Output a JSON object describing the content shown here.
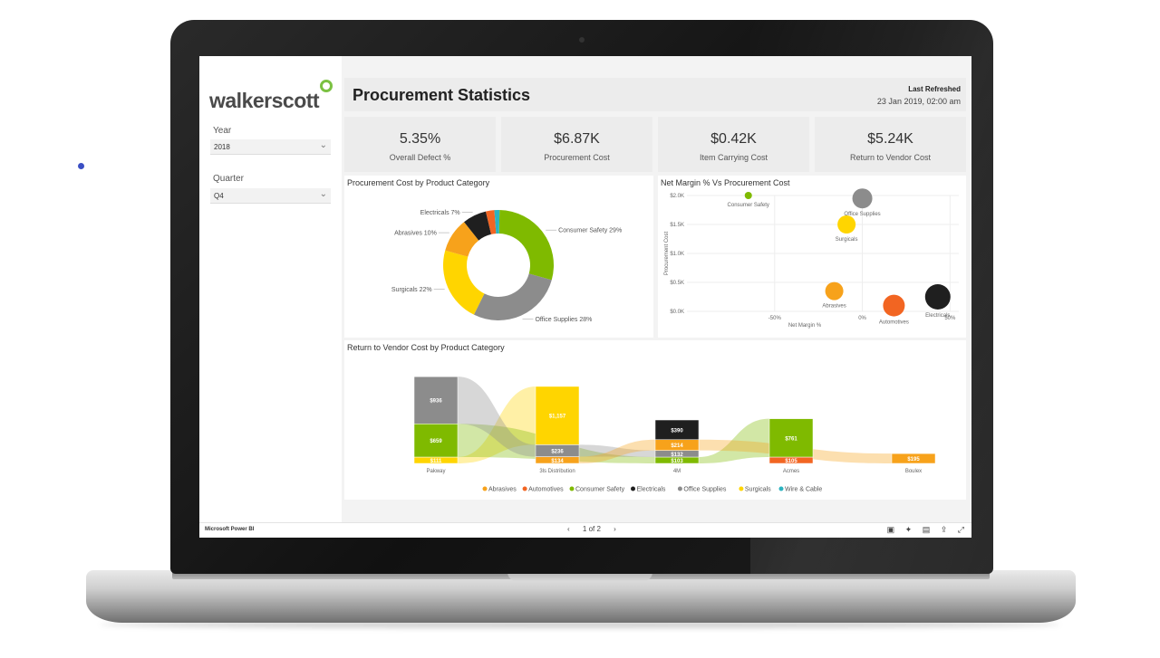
{
  "brand": {
    "logo_text": "walkerscott"
  },
  "filters": {
    "year_label": "Year",
    "year_value": "2018",
    "quarter_label": "Quarter",
    "quarter_value": "Q4"
  },
  "header": {
    "title": "Procurement Statistics",
    "refresh_label": "Last Refreshed",
    "refresh_date": "23 Jan 2019, 02:00 am"
  },
  "kpis": [
    {
      "value": "5.35%",
      "label": "Overall Defect %"
    },
    {
      "value": "$6.87K",
      "label": "Procurement Cost"
    },
    {
      "value": "$0.42K",
      "label": "Item Carrying Cost"
    },
    {
      "value": "$5.24K",
      "label": "Return to Vendor Cost"
    }
  ],
  "donut": {
    "title": "Procurement Cost by Product Category",
    "chart_data": {
      "type": "pie",
      "slices": [
        {
          "name": "Consumer Safety",
          "value": 29,
          "label": "Consumer Safety 29%",
          "color": "#7fba00"
        },
        {
          "name": "Office Supplies",
          "value": 28,
          "label": "Office Supplies 28%",
          "color": "#8c8c8c"
        },
        {
          "name": "Surgicals",
          "value": 22,
          "label": "Surgicals 22%",
          "color": "#ffd500"
        },
        {
          "name": "Abrasives",
          "value": 10,
          "label": "Abrasives 10%",
          "color": "#f7a21b"
        },
        {
          "name": "Electricals",
          "value": 7,
          "label": "Electricals 7%",
          "color": "#1f1f1f"
        },
        {
          "name": "Automotives",
          "value": 2.5,
          "label": "",
          "color": "#f26522"
        },
        {
          "name": "Wire & Cable",
          "value": 1.5,
          "label": "",
          "color": "#2bb3c0"
        }
      ]
    }
  },
  "scatter": {
    "title": "Net Margin % Vs Procurement Cost",
    "chart_data": {
      "type": "scatter",
      "xlabel": "Net Margin %",
      "ylabel": "Procurement Cost",
      "x_ticks": [
        "-50%",
        "0%",
        "50%"
      ],
      "y_ticks": [
        "$0.0K",
        "$0.5K",
        "$1.0K",
        "$1.5K",
        "$2.0K"
      ],
      "points": [
        {
          "name": "Consumer Safety",
          "x": -65,
          "y": 2.0,
          "color": "#7fba00",
          "size": 4
        },
        {
          "name": "Office Supplies",
          "x": 0,
          "y": 1.95,
          "color": "#8c8c8c",
          "size": 11
        },
        {
          "name": "Surgicals",
          "x": -9,
          "y": 1.5,
          "color": "#ffd500",
          "size": 10
        },
        {
          "name": "Abrasives",
          "x": -16,
          "y": 0.35,
          "color": "#f7a21b",
          "size": 10
        },
        {
          "name": "Automotives",
          "x": 18,
          "y": 0.1,
          "color": "#f26522",
          "size": 12
        },
        {
          "name": "Electricals",
          "x": 43,
          "y": 0.25,
          "color": "#1f1f1f",
          "size": 14
        }
      ]
    }
  },
  "ribbon": {
    "title": "Return to Vendor Cost by Product Category",
    "chart_data": {
      "type": "bar",
      "categories": [
        "Pakway",
        "3ls Distribution",
        "4M",
        "Acmes",
        "Boulex"
      ],
      "bars": [
        {
          "category": "Pakway",
          "segments": [
            {
              "series": "Office Supplies",
              "value": 936,
              "label": "$936"
            },
            {
              "series": "Consumer Safety",
              "value": 659,
              "label": "$659"
            },
            {
              "series": "Surgicals",
              "value": 111,
              "label": "$111"
            }
          ]
        },
        {
          "category": "3ls Distribution",
          "segments": [
            {
              "series": "Surgicals",
              "value": 1157,
              "label": "$1,157"
            },
            {
              "series": "Office Supplies",
              "value": 236,
              "label": "$236"
            },
            {
              "series": "Abrasives",
              "value": 134,
              "label": "$134"
            }
          ]
        },
        {
          "category": "4M",
          "segments": [
            {
              "series": "Electricals",
              "value": 390,
              "label": "$390"
            },
            {
              "series": "Abrasives",
              "value": 214,
              "label": "$214"
            },
            {
              "series": "Office Supplies",
              "value": 132,
              "label": "$132"
            },
            {
              "series": "Consumer Safety",
              "value": 103,
              "label": "$103"
            }
          ]
        },
        {
          "category": "Acmes",
          "segments": [
            {
              "series": "Consumer Safety",
              "value": 761,
              "label": "$761"
            },
            {
              "series": "Automotives",
              "value": 105,
              "label": "$105"
            }
          ]
        },
        {
          "category": "Boulex",
          "segments": [
            {
              "series": "Abrasives",
              "value": 195,
              "label": "$195"
            }
          ]
        }
      ],
      "legend": [
        {
          "name": "Abrasives",
          "color": "#f7a21b"
        },
        {
          "name": "Automotives",
          "color": "#f26522"
        },
        {
          "name": "Consumer Safety",
          "color": "#7fba00"
        },
        {
          "name": "Electricals",
          "color": "#1f1f1f"
        },
        {
          "name": "Office Supplies",
          "color": "#8c8c8c"
        },
        {
          "name": "Surgicals",
          "color": "#ffd500"
        },
        {
          "name": "Wire & Cable",
          "color": "#2bb3c0"
        }
      ]
    }
  },
  "footer": {
    "app_label": "Microsoft Power BI",
    "page_indicator": "1 of 2"
  }
}
